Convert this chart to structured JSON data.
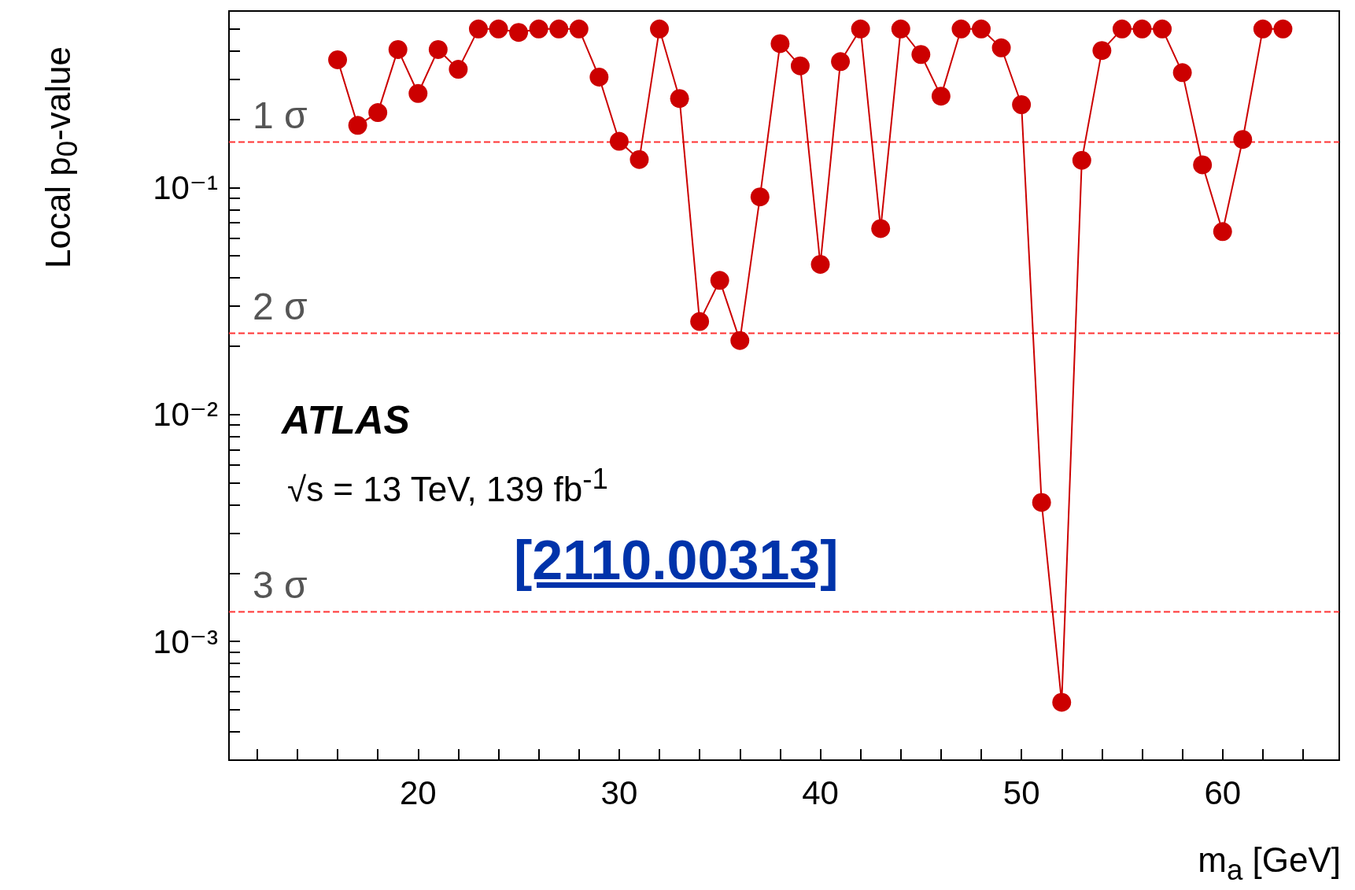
{
  "chart_data": {
    "type": "line",
    "xlabel": "m$_{a}$ [GeV]",
    "ylabel": "Local p$_{0}$-value",
    "x": [
      16,
      17,
      18,
      19,
      20,
      21,
      22,
      23,
      24,
      25,
      26,
      27,
      28,
      29,
      30,
      31,
      32,
      33,
      34,
      35,
      36,
      37,
      38,
      39,
      40,
      41,
      42,
      43,
      44,
      45,
      46,
      47,
      48,
      49,
      50,
      51,
      52,
      53,
      54,
      55,
      56,
      57,
      58,
      59,
      60,
      61,
      62,
      63
    ],
    "series": [
      {
        "color": "#cc0000",
        "values": [
          0.366,
          0.188,
          0.214,
          0.406,
          0.26,
          0.406,
          0.332,
          0.5,
          0.5,
          0.483,
          0.5,
          0.5,
          0.5,
          0.307,
          0.16,
          0.133,
          0.5,
          0.247,
          0.0257,
          0.039,
          0.0212,
          0.091,
          0.431,
          0.344,
          0.0459,
          0.359,
          0.5,
          0.066,
          0.5,
          0.386,
          0.253,
          0.5,
          0.5,
          0.413,
          0.232,
          0.0041,
          0.00054,
          0.132,
          0.402,
          0.5,
          0.5,
          0.5,
          0.321,
          0.126,
          0.064,
          0.163,
          0.5,
          0.5
        ]
      }
    ],
    "marker": "circle",
    "line_style": "solid",
    "log": "y",
    "grid": false,
    "xlim": [
      10.6,
      65.8
    ],
    "xticks": [
      {
        "value": 12,
        "label": null
      },
      {
        "value": 14,
        "label": null
      },
      {
        "value": 16,
        "label": null
      },
      {
        "value": 18,
        "label": null
      },
      20,
      {
        "value": 22,
        "label": null
      },
      {
        "value": 24,
        "label": null
      },
      {
        "value": 26,
        "label": null
      },
      {
        "value": 28,
        "label": null
      },
      30,
      {
        "value": 32,
        "label": null
      },
      {
        "value": 34,
        "label": null
      },
      {
        "value": 36,
        "label": null
      },
      {
        "value": 38,
        "label": null
      },
      40,
      {
        "value": 42,
        "label": null
      },
      {
        "value": 44,
        "label": null
      },
      {
        "value": 46,
        "label": null
      },
      {
        "value": 48,
        "label": null
      },
      50,
      {
        "value": 52,
        "label": null
      },
      {
        "value": 54,
        "label": null
      },
      {
        "value": 56,
        "label": null
      },
      {
        "value": 58,
        "label": null
      },
      60,
      {
        "value": 62,
        "label": null
      },
      {
        "value": 64,
        "label": null
      }
    ],
    "ylim": [
      0.0003,
      0.6
    ],
    "yticks": [
      {
        "value": 0.0004,
        "label": null
      },
      {
        "value": 0.0005,
        "label": null
      },
      {
        "value": 0.0006,
        "label": null
      },
      {
        "value": 0.0007,
        "label": null
      },
      {
        "value": 0.0008,
        "label": null
      },
      {
        "value": 0.0009,
        "label": null
      },
      {
        "value": 0.001,
        "label": "10⁻³"
      },
      {
        "value": 0.002,
        "label": null
      },
      {
        "value": 0.003,
        "label": null
      },
      {
        "value": 0.004,
        "label": null
      },
      {
        "value": 0.005,
        "label": null
      },
      {
        "value": 0.006,
        "label": null
      },
      {
        "value": 0.007,
        "label": null
      },
      {
        "value": 0.008,
        "label": null
      },
      {
        "value": 0.009,
        "label": null
      },
      {
        "value": 0.01,
        "label": "10⁻²"
      },
      {
        "value": 0.02,
        "label": null
      },
      {
        "value": 0.03,
        "label": null
      },
      {
        "value": 0.04,
        "label": null
      },
      {
        "value": 0.05,
        "label": null
      },
      {
        "value": 0.06,
        "label": null
      },
      {
        "value": 0.07,
        "label": null
      },
      {
        "value": 0.08,
        "label": null
      },
      {
        "value": 0.09,
        "label": null
      },
      {
        "value": 0.1,
        "label": "10⁻¹"
      },
      {
        "value": 0.2,
        "label": null
      },
      {
        "value": 0.3,
        "label": null
      },
      {
        "value": 0.4,
        "label": null
      },
      {
        "value": 0.5,
        "label": null
      }
    ],
    "ref_lines": [
      {
        "axis": "y",
        "value": 0.1587,
        "label": "1 σ",
        "color": "#ff3333",
        "line_style": "dashed"
      },
      {
        "axis": "y",
        "value": 0.0228,
        "label": "2 σ",
        "color": "#ff3333",
        "line_style": "dashed"
      },
      {
        "axis": "y",
        "value": 0.00135,
        "label": "3 σ",
        "color": "#ff3333",
        "line_style": "dashed"
      }
    ],
    "annotations": [
      "ATLAS",
      "√s = 13 TeV, 139 fb$^{-1}$",
      "[2110.00313]"
    ]
  }
}
